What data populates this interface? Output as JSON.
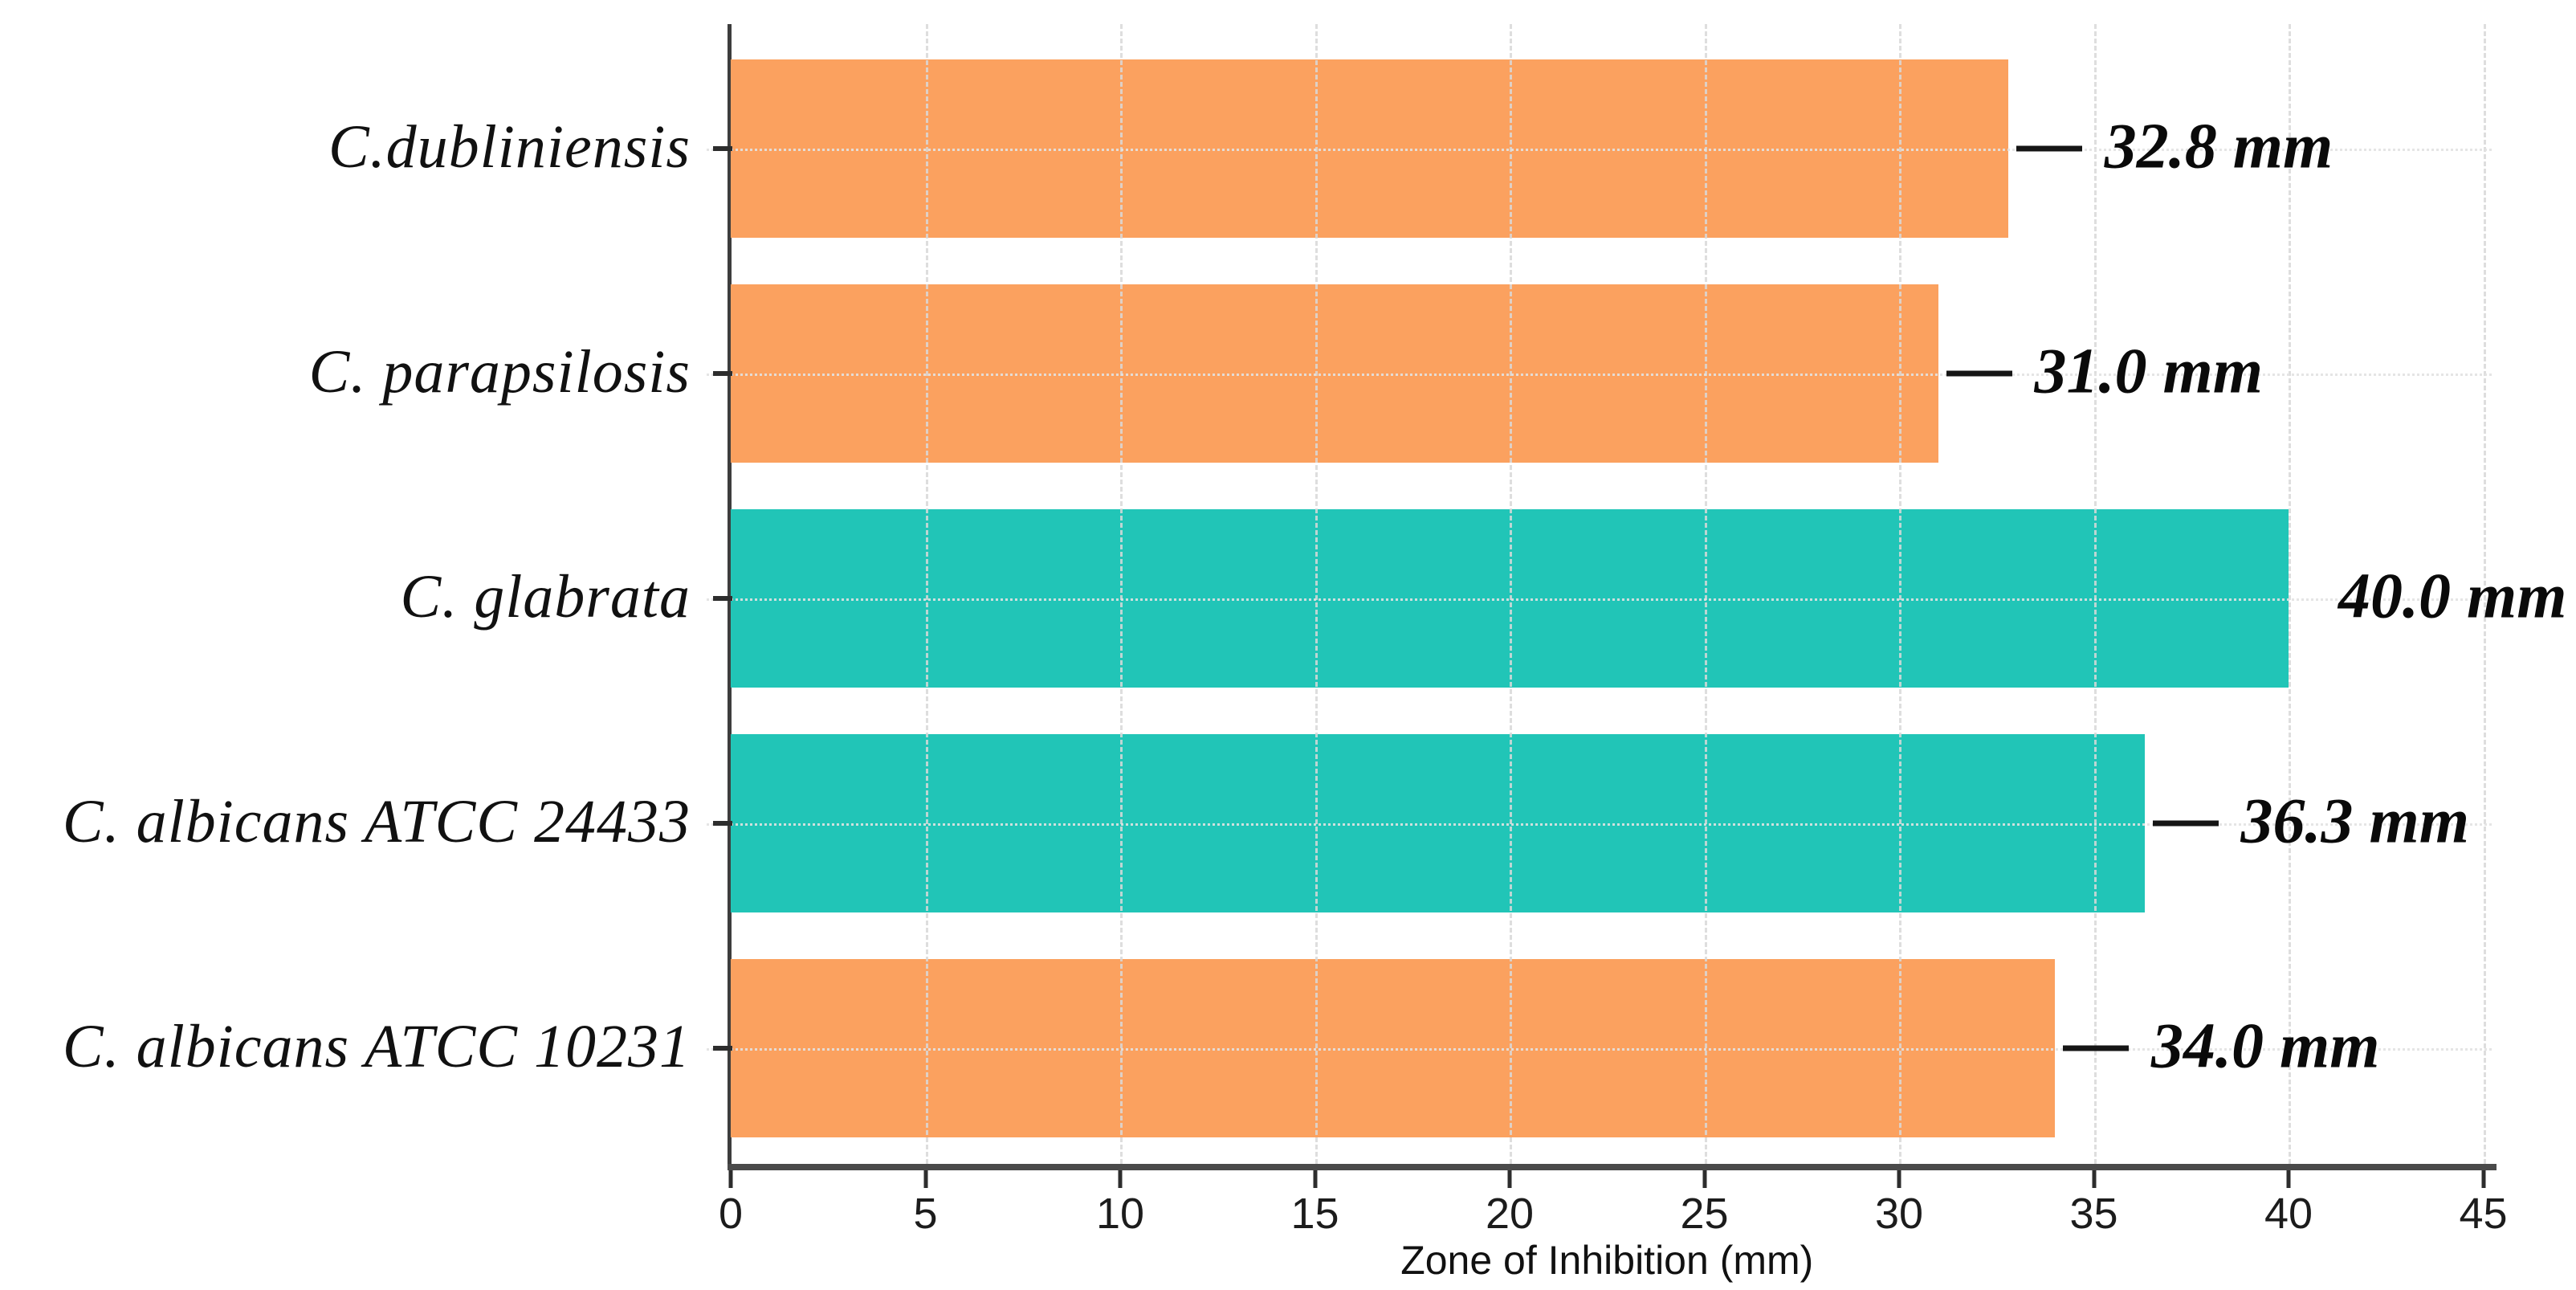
{
  "chart_data": {
    "type": "bar",
    "orientation": "horizontal",
    "title": "",
    "xlabel": "Zone of Inhibition (mm)",
    "xlim": [
      0,
      45
    ],
    "xticks": [
      0,
      5,
      10,
      15,
      20,
      25,
      30,
      35,
      40,
      45
    ],
    "grid": {
      "vertical": "dashed",
      "horizontal": "dotted",
      "color": "#d8d8d8"
    },
    "legend": "none",
    "bars": [
      {
        "category": "C.dubliniensis",
        "value": 32.8,
        "label": "32.8 mm",
        "color": "#FBA15F",
        "leader_line": true
      },
      {
        "category": "C. parapsilosis",
        "value": 31.0,
        "label": "31.0 mm",
        "color": "#FBA15F",
        "leader_line": true
      },
      {
        "category": "C. glabrata",
        "value": 40.0,
        "label": "40.0 mm",
        "color": "#21C5B7",
        "leader_line": false
      },
      {
        "category": "C. albicans ATCC 24433",
        "value": 36.3,
        "label": "36.3 mm",
        "color": "#21C5B7",
        "leader_line": true
      },
      {
        "category": "C. albicans ATCC 10231",
        "value": 34.0,
        "label": "34.0 mm",
        "color": "#FBA15F",
        "leader_line": true
      }
    ],
    "colors": {
      "orange_series": "#FBA15F",
      "teal_series": "#21C5B7",
      "axis": "#3d3d3d",
      "text": "#111111"
    }
  }
}
